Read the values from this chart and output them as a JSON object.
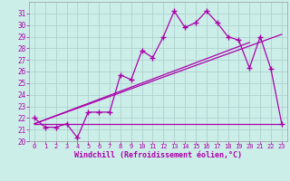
{
  "xlabel": "Windchill (Refroidissement éolien,°C)",
  "xlim": [
    -0.5,
    23.5
  ],
  "ylim": [
    20,
    32
  ],
  "xticks": [
    0,
    1,
    2,
    3,
    4,
    5,
    6,
    7,
    8,
    9,
    10,
    11,
    12,
    13,
    14,
    15,
    16,
    17,
    18,
    19,
    20,
    21,
    22,
    23
  ],
  "yticks": [
    20,
    21,
    22,
    23,
    24,
    25,
    26,
    27,
    28,
    29,
    30,
    31
  ],
  "bg_color": "#cceee8",
  "line_color": "#aa00aa",
  "line1_x": [
    0,
    1,
    2,
    3,
    4,
    5,
    6,
    7,
    8,
    9,
    10,
    11,
    12,
    13,
    14,
    15,
    16,
    17,
    18,
    19,
    20,
    21,
    22,
    23
  ],
  "line1_y": [
    22.0,
    21.2,
    21.2,
    21.5,
    20.3,
    22.5,
    22.5,
    22.5,
    25.7,
    25.3,
    27.8,
    27.2,
    29.0,
    31.2,
    29.8,
    30.2,
    31.2,
    30.2,
    29.0,
    28.7,
    26.3,
    29.0,
    26.2,
    21.5
  ],
  "line2_x": [
    0,
    23
  ],
  "line2_y": [
    21.5,
    21.5
  ],
  "line3_x": [
    0,
    20
  ],
  "line3_y": [
    21.5,
    28.5
  ],
  "line4_x": [
    0,
    23
  ],
  "line4_y": [
    21.5,
    29.2
  ],
  "grid_color": "#aacccc"
}
